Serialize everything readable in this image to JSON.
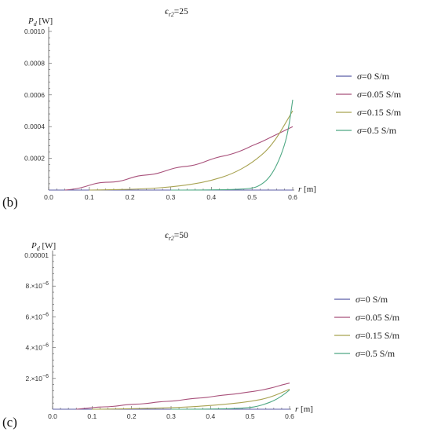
{
  "chart_data": [
    {
      "type": "line",
      "panel_label": "(b)",
      "title": "ϵr2=25",
      "xlabel": "r [m]",
      "ylabel": "Pd [W]",
      "xlim": [
        0.0,
        0.6
      ],
      "ylim": [
        0.0,
        0.001
      ],
      "x_ticks": [
        "0.0",
        "0.1",
        "0.2",
        "0.3",
        "0.4",
        "0.5",
        "0.6"
      ],
      "y_ticks": [
        "0.0002",
        "0.0004",
        "0.0006",
        "0.0008",
        "0.0010"
      ],
      "grid": false,
      "legend_position": "right",
      "series": [
        {
          "name": "σ=0 S/m",
          "color": "#5b5ea6",
          "x": [
            0.0,
            0.1,
            0.2,
            0.3,
            0.4,
            0.5,
            0.6
          ],
          "y": [
            0,
            0,
            0,
            0,
            0,
            0,
            0
          ]
        },
        {
          "name": "σ=0.05 S/m",
          "color": "#a8507a",
          "x": [
            0.04,
            0.06,
            0.08,
            0.1,
            0.12,
            0.14,
            0.16,
            0.18,
            0.2,
            0.22,
            0.24,
            0.26,
            0.28,
            0.3,
            0.32,
            0.34,
            0.36,
            0.38,
            0.4,
            0.42,
            0.44,
            0.46,
            0.48,
            0.5,
            0.52,
            0.54,
            0.56,
            0.58,
            0.6
          ],
          "y": [
            0.0,
            5e-06,
            1.5e-05,
            3e-05,
            4.5e-05,
            5e-05,
            5e-05,
            5.8e-05,
            7.5e-05,
            9e-05,
            9.5e-05,
            0.0001,
            0.000115,
            0.000132,
            0.000145,
            0.00015,
            0.000158,
            0.000175,
            0.000195,
            0.00021,
            0.00022,
            0.000235,
            0.000255,
            0.00028,
            0.0003,
            0.000325,
            0.00035,
            0.000375,
            0.0004
          ]
        },
        {
          "name": "σ=0.15 S/m",
          "color": "#a8a352",
          "x": [
            0.1,
            0.15,
            0.2,
            0.25,
            0.3,
            0.35,
            0.4,
            0.45,
            0.5,
            0.55,
            0.6
          ],
          "y": [
            0.0,
            2e-06,
            5e-06,
            1e-05,
            2e-05,
            3.5e-05,
            6e-05,
            0.0001,
            0.00017,
            0.00028,
            0.0005
          ]
        },
        {
          "name": "σ=0.5 S/m",
          "color": "#4fa884",
          "x": [
            0.3,
            0.35,
            0.4,
            0.45,
            0.5,
            0.52,
            0.54,
            0.56,
            0.58,
            0.59,
            0.6
          ],
          "y": [
            0.0,
            0.0,
            1e-06,
            3e-06,
            1e-05,
            3e-05,
            7e-05,
            0.00015,
            0.00028,
            0.00039,
            0.00057
          ]
        }
      ]
    },
    {
      "type": "line",
      "panel_label": "(c)",
      "title": "ϵr2=50",
      "xlabel": "r [m]",
      "ylabel": "Pd [W]",
      "xlim": [
        0.0,
        0.6
      ],
      "ylim": [
        0.0,
        1e-05
      ],
      "x_ticks": [
        "0.0",
        "0.1",
        "0.2",
        "0.3",
        "0.4",
        "0.5",
        "0.6"
      ],
      "y_ticks": [
        "2.×10−6",
        "4.×10−6",
        "6.×10−6",
        "8.×10−6",
        "0.00001"
      ],
      "grid": false,
      "legend_position": "right",
      "series": [
        {
          "name": "σ=0 S/m",
          "color": "#5b5ea6",
          "x": [
            0.0,
            0.1,
            0.2,
            0.3,
            0.4,
            0.5,
            0.6
          ],
          "y": [
            0,
            0,
            0,
            0,
            0,
            0,
            0
          ]
        },
        {
          "name": "σ=0.05 S/m",
          "color": "#a8507a",
          "x": [
            0.06,
            0.08,
            0.1,
            0.12,
            0.14,
            0.16,
            0.18,
            0.2,
            0.22,
            0.24,
            0.26,
            0.28,
            0.3,
            0.32,
            0.34,
            0.36,
            0.38,
            0.4,
            0.42,
            0.44,
            0.46,
            0.48,
            0.5,
            0.52,
            0.54,
            0.56,
            0.58,
            0.6
          ],
          "y": [
            0.0,
            4e-08,
            1e-07,
            1.5e-07,
            1.6e-07,
            2e-07,
            2.7e-07,
            3.2e-07,
            3.3e-07,
            3.8e-07,
            4.5e-07,
            5e-07,
            5.2e-07,
            5.7e-07,
            6.5e-07,
            7.1e-07,
            7.4e-07,
            8e-07,
            8.8e-07,
            9.4e-07,
            9.8e-07,
            1.05e-06,
            1.13e-06,
            1.2e-06,
            1.3e-06,
            1.42e-06,
            1.58e-06,
            1.7e-06
          ]
        },
        {
          "name": "σ=0.15 S/m",
          "color": "#a8a352",
          "x": [
            0.1,
            0.15,
            0.2,
            0.25,
            0.3,
            0.35,
            0.4,
            0.45,
            0.5,
            0.55,
            0.6
          ],
          "y": [
            0.0,
            1e-08,
            3e-08,
            6e-08,
            1e-07,
            1.6e-07,
            2.4e-07,
            3.5e-07,
            5e-07,
            7.5e-07,
            1.3e-06
          ]
        },
        {
          "name": "σ=0.5 S/m",
          "color": "#4fa884",
          "x": [
            0.3,
            0.35,
            0.4,
            0.45,
            0.5,
            0.52,
            0.54,
            0.56,
            0.58,
            0.6
          ],
          "y": [
            0.0,
            0.0,
            1e-08,
            3e-08,
            1e-07,
            2e-07,
            3.5e-07,
            5.5e-07,
            8.5e-07,
            1.25e-06
          ]
        }
      ]
    }
  ]
}
